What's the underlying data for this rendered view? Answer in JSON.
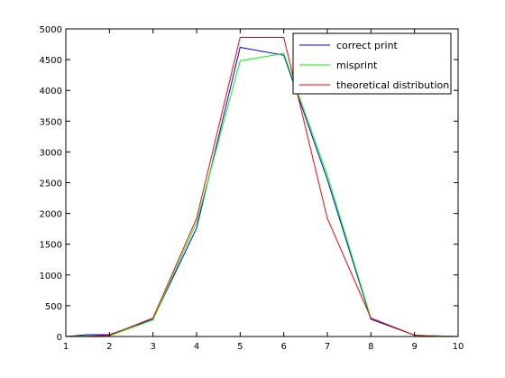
{
  "chart_data": {
    "type": "line",
    "title": "",
    "xlabel": "",
    "ylabel": "",
    "xlim": [
      1,
      10
    ],
    "ylim": [
      0,
      5000
    ],
    "xticks": [
      "1",
      "2",
      "3",
      "4",
      "5",
      "6",
      "7",
      "8",
      "9",
      "10"
    ],
    "yticks": [
      "0",
      "500",
      "1000",
      "1500",
      "2000",
      "2500",
      "3000",
      "3500",
      "4000",
      "4500",
      "5000"
    ],
    "grid": false,
    "legend_position": "top-right",
    "series": [
      {
        "name": "correct print",
        "color": "#0000ff",
        "x": [
          1,
          1.5,
          2,
          3,
          4,
          5,
          6,
          7,
          8,
          9,
          9.5,
          10
        ],
        "y": [
          0,
          30,
          30,
          280,
          1760,
          4700,
          4570,
          2550,
          280,
          20,
          10,
          0
        ]
      },
      {
        "name": "misprint",
        "color": "#00ff00",
        "x": [
          1,
          1.5,
          2,
          3,
          4,
          5,
          6,
          7,
          8,
          9,
          9.5,
          10
        ],
        "y": [
          0,
          10,
          10,
          270,
          1850,
          4480,
          4600,
          2620,
          300,
          20,
          10,
          0
        ]
      },
      {
        "name": "theoretical distribution",
        "color": "#ff0000",
        "x": [
          1,
          1.5,
          2,
          3,
          4,
          5,
          6,
          7,
          8,
          9,
          9.5,
          10
        ],
        "y": [
          0,
          5,
          20,
          300,
          1920,
          4860,
          4860,
          1920,
          300,
          20,
          5,
          0
        ]
      }
    ]
  }
}
